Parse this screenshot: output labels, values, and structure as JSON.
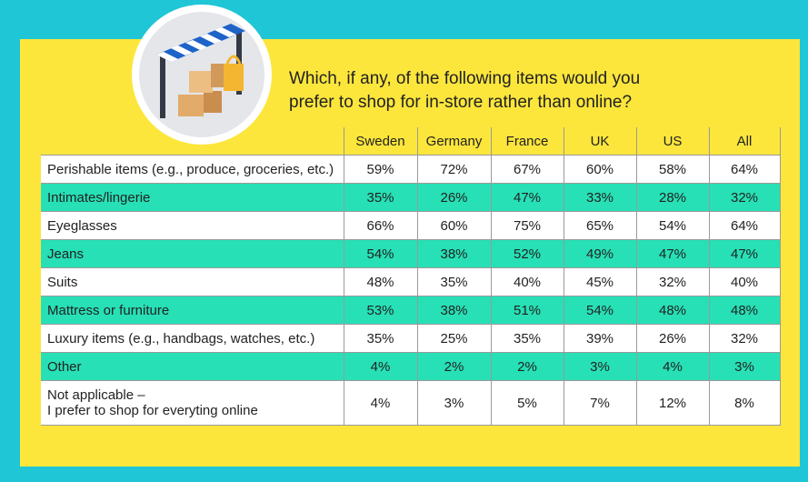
{
  "header": {
    "title_lines": [
      "Which, if any, of the following items would you",
      "prefer to shop for in-store rather than online?"
    ]
  },
  "table": {
    "columns": [
      "Sweden",
      "Germany",
      "France",
      "UK",
      "US",
      "All"
    ],
    "rows": [
      {
        "label": [
          "Perishable items (e.g., produce, groceries, etc.)"
        ],
        "values": [
          "59%",
          "72%",
          "67%",
          "60%",
          "58%",
          "64%"
        ]
      },
      {
        "label": [
          "Intimates/lingerie"
        ],
        "values": [
          "35%",
          "26%",
          "47%",
          "33%",
          "28%",
          "32%"
        ]
      },
      {
        "label": [
          "Eyeglasses"
        ],
        "values": [
          "66%",
          "60%",
          "75%",
          "65%",
          "54%",
          "64%"
        ]
      },
      {
        "label": [
          "Jeans"
        ],
        "values": [
          "54%",
          "38%",
          "52%",
          "49%",
          "47%",
          "47%"
        ]
      },
      {
        "label": [
          "Suits"
        ],
        "values": [
          "48%",
          "35%",
          "40%",
          "45%",
          "32%",
          "40%"
        ]
      },
      {
        "label": [
          "Mattress or furniture"
        ],
        "values": [
          "53%",
          "38%",
          "51%",
          "54%",
          "48%",
          "48%"
        ]
      },
      {
        "label": [
          "Luxury items (e.g., handbags, watches, etc.)"
        ],
        "values": [
          "35%",
          "25%",
          "35%",
          "39%",
          "26%",
          "32%"
        ]
      },
      {
        "label": [
          "Other"
        ],
        "values": [
          "4%",
          "2%",
          "2%",
          "3%",
          "4%",
          "3%"
        ]
      },
      {
        "label": [
          "Not applicable –",
          "I prefer to shop for everyting online"
        ],
        "values": [
          "4%",
          "3%",
          "5%",
          "7%",
          "12%",
          "8%"
        ]
      }
    ]
  }
}
